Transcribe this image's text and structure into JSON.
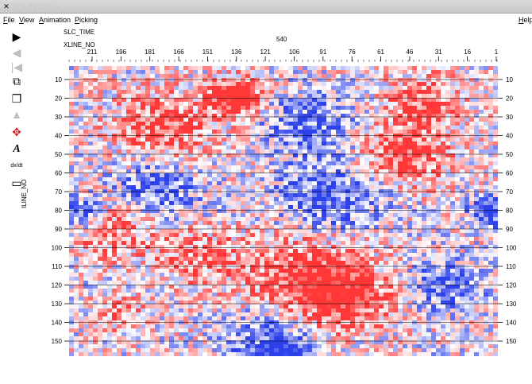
{
  "window": {
    "title": "traceDisplay.exe",
    "help_label": "Help"
  },
  "menu": {
    "items": [
      "File",
      "View",
      "Animation",
      "Picking"
    ]
  },
  "toolbar": {
    "tools": [
      {
        "name": "play-forward-icon",
        "glyph": "▶",
        "enabled": true
      },
      {
        "name": "play-back-icon",
        "glyph": "◀",
        "enabled": false
      },
      {
        "name": "skip-start-icon",
        "glyph": "|◀",
        "enabled": false
      },
      {
        "name": "multi-window-icon",
        "glyph": "⧉",
        "enabled": true
      },
      {
        "name": "stack-window-icon",
        "glyph": "❐",
        "enabled": true
      },
      {
        "name": "print-icon",
        "glyph": "▲",
        "enabled": false
      },
      {
        "name": "pan-move-icon",
        "glyph": "✥",
        "enabled": true
      },
      {
        "name": "text-annotate-icon",
        "glyph": "A",
        "enabled": true
      },
      {
        "name": "derivative-icon",
        "glyph": "dx/dt",
        "enabled": true
      },
      {
        "name": "panel-icon",
        "glyph": "▭",
        "enabled": true
      }
    ]
  },
  "plot": {
    "slice_label": "SLC_TIME",
    "slice_value": "540",
    "x_axis_label": "XLINE_NO",
    "y_axis_label": "ILINE_NO",
    "x_ticks": [
      "211",
      "196",
      "181",
      "166",
      "151",
      "136",
      "121",
      "106",
      "91",
      "76",
      "61",
      "46",
      "31",
      "16",
      "1"
    ],
    "y_ticks": [
      "10",
      "20",
      "30",
      "40",
      "50",
      "60",
      "70",
      "80",
      "90",
      "100",
      "110",
      "120",
      "130",
      "140",
      "150"
    ],
    "colors": {
      "positive": "#e02020",
      "negative": "#1f3fd6",
      "neutral": "#ffffff"
    }
  }
}
